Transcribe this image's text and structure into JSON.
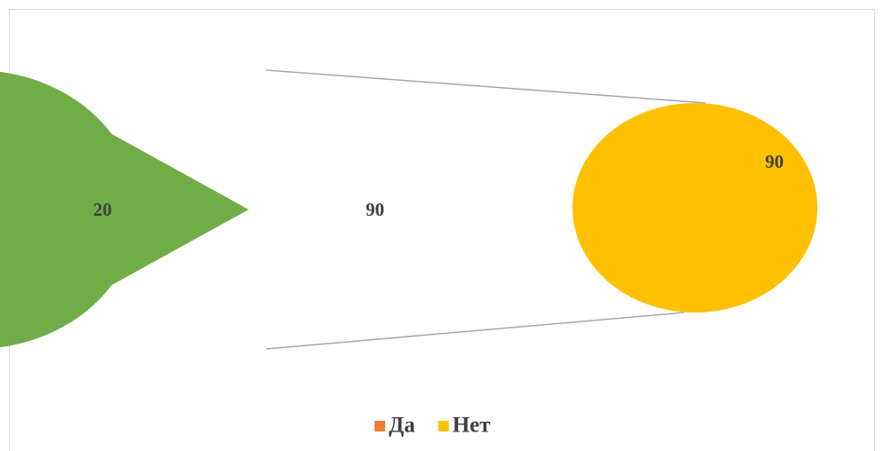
{
  "chart_data": {
    "type": "pie",
    "categories": [
      "Да",
      "Нет"
    ],
    "values": [
      20,
      90
    ],
    "colors": [
      "#ed7d31",
      "#ffc000"
    ],
    "other_color": "#70ad47",
    "legend": "bottom"
  }
}
